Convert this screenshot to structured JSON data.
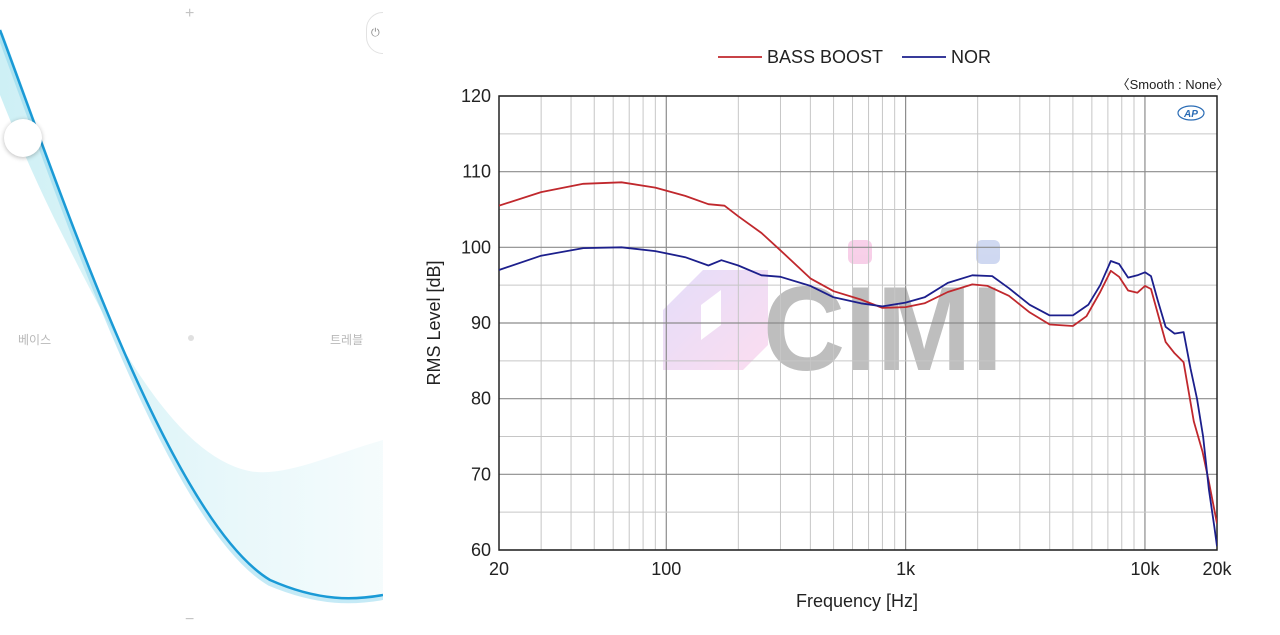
{
  "eq_panel": {
    "bass_label": "베이스",
    "treble_label": "트레블",
    "plus_label": "+",
    "minus_label": "−",
    "power_icon": "⏻",
    "colors": {
      "curve": "#1a9ad6",
      "fill_light": "#dff4f7"
    }
  },
  "chart_data": {
    "type": "line",
    "title": "",
    "xlabel": "Frequency [Hz]",
    "ylabel": "RMS Level [dB]",
    "xscale": "log",
    "xlim": [
      20,
      20000
    ],
    "ylim": [
      60,
      120
    ],
    "xticks": [
      {
        "value": 20,
        "label": "20"
      },
      {
        "value": 100,
        "label": "100"
      },
      {
        "value": 1000,
        "label": "1k"
      },
      {
        "value": 10000,
        "label": "10k"
      },
      {
        "value": 20000,
        "label": "20k"
      }
    ],
    "yticks": [
      60,
      70,
      80,
      90,
      100,
      110,
      120
    ],
    "grid": true,
    "legend": {
      "placement": "top-center",
      "entries": [
        "BASS BOOST",
        "NOR"
      ]
    },
    "annotation": "〈Smooth : None〉",
    "logo_text": "AP",
    "watermark_text": "CIMI",
    "series": [
      {
        "name": "BASS BOOST",
        "color": "#c0282d",
        "x": [
          20,
          30,
          45,
          65,
          90,
          120,
          150,
          175,
          200,
          250,
          300,
          400,
          500,
          650,
          800,
          1000,
          1200,
          1500,
          1900,
          2200,
          2700,
          3300,
          4000,
          5000,
          5700,
          6500,
          7200,
          7800,
          8500,
          9300,
          10000,
          10600,
          11300,
          12200,
          13300,
          14500,
          16000,
          17400,
          18500,
          20000
        ],
        "values": [
          105.5,
          107.3,
          108.4,
          108.6,
          107.9,
          106.8,
          105.7,
          105.5,
          104.1,
          101.9,
          99.6,
          95.9,
          94.2,
          93.1,
          92.0,
          92.1,
          92.6,
          94.1,
          95.1,
          94.9,
          93.6,
          91.4,
          89.8,
          89.6,
          90.9,
          94.1,
          96.9,
          96.1,
          94.3,
          94.0,
          94.9,
          94.5,
          91.3,
          87.5,
          86.0,
          84.8,
          77.0,
          73.0,
          69.0,
          63.5
        ]
      },
      {
        "name": "NOR",
        "color": "#1c1f8c",
        "x": [
          20,
          30,
          45,
          65,
          90,
          120,
          150,
          170,
          200,
          250,
          300,
          400,
          500,
          650,
          800,
          1000,
          1200,
          1500,
          1900,
          2300,
          2700,
          3300,
          4000,
          5000,
          5800,
          6500,
          7200,
          7800,
          8500,
          9300,
          10000,
          10600,
          11300,
          12200,
          13300,
          14500,
          15500,
          16500,
          17500,
          18500,
          19500,
          20000
        ],
        "values": [
          97.0,
          98.9,
          99.9,
          100.0,
          99.5,
          98.7,
          97.6,
          98.3,
          97.6,
          96.3,
          96.1,
          94.9,
          93.4,
          92.6,
          92.2,
          92.7,
          93.4,
          95.3,
          96.3,
          96.2,
          94.6,
          92.4,
          91.0,
          91.0,
          92.4,
          95.0,
          98.2,
          97.8,
          96.0,
          96.3,
          96.7,
          96.2,
          93.0,
          89.5,
          88.6,
          88.8,
          84.0,
          80.0,
          75.0,
          68.0,
          63.0,
          60.5
        ]
      }
    ]
  }
}
